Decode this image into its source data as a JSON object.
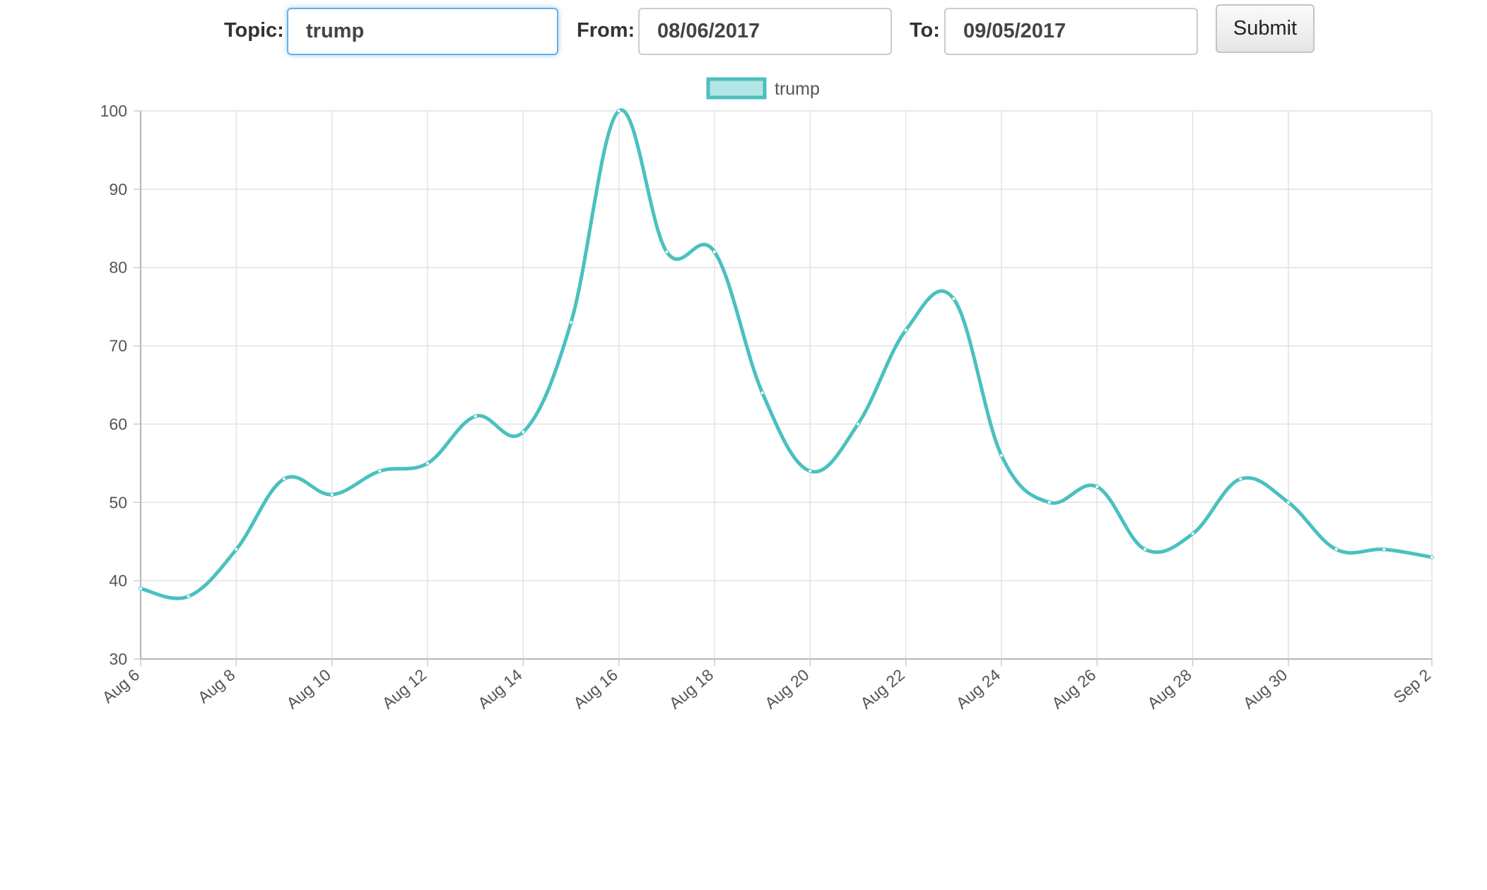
{
  "form": {
    "topic_label": "Topic:",
    "topic_value": "trump",
    "from_label": "From:",
    "from_value": "08/06/2017",
    "to_label": "To:",
    "to_value": "09/05/2017",
    "submit_label": "Submit"
  },
  "chart_data": {
    "type": "line",
    "title": "",
    "xlabel": "",
    "ylabel": "",
    "ylim": [
      30,
      100
    ],
    "yticks": [
      30,
      40,
      50,
      60,
      70,
      80,
      90,
      100
    ],
    "x": [
      "2017-08-06",
      "2017-08-07",
      "2017-08-08",
      "2017-08-09",
      "2017-08-10",
      "2017-08-11",
      "2017-08-12",
      "2017-08-13",
      "2017-08-14",
      "2017-08-15",
      "2017-08-16",
      "2017-08-17",
      "2017-08-18",
      "2017-08-19",
      "2017-08-20",
      "2017-08-21",
      "2017-08-22",
      "2017-08-23",
      "2017-08-24",
      "2017-08-25",
      "2017-08-26",
      "2017-08-27",
      "2017-08-28",
      "2017-08-29",
      "2017-08-30",
      "2017-08-31",
      "2017-09-01",
      "2017-09-02"
    ],
    "xtick_labels": [
      "Aug 6",
      "Aug 8",
      "Aug 10",
      "Aug 12",
      "Aug 14",
      "Aug 16",
      "Aug 18",
      "Aug 20",
      "Aug 22",
      "Aug 24",
      "Aug 26",
      "Aug 28",
      "Aug 30",
      "Sep 2"
    ],
    "xtick_dates": [
      "2017-08-06",
      "2017-08-08",
      "2017-08-10",
      "2017-08-12",
      "2017-08-14",
      "2017-08-16",
      "2017-08-18",
      "2017-08-20",
      "2017-08-22",
      "2017-08-24",
      "2017-08-26",
      "2017-08-28",
      "2017-08-30",
      "2017-09-02"
    ],
    "series": [
      {
        "name": "trump",
        "color": "#4bc0c0",
        "fill": "#b3e6e6",
        "values": [
          39,
          38,
          44,
          53,
          51,
          54,
          55,
          61,
          59,
          73,
          100,
          82,
          82,
          64,
          54,
          60,
          72,
          76,
          56,
          50,
          52,
          44,
          46,
          53,
          50,
          44,
          44,
          43
        ]
      }
    ],
    "grid": true,
    "legend_position": "top"
  }
}
